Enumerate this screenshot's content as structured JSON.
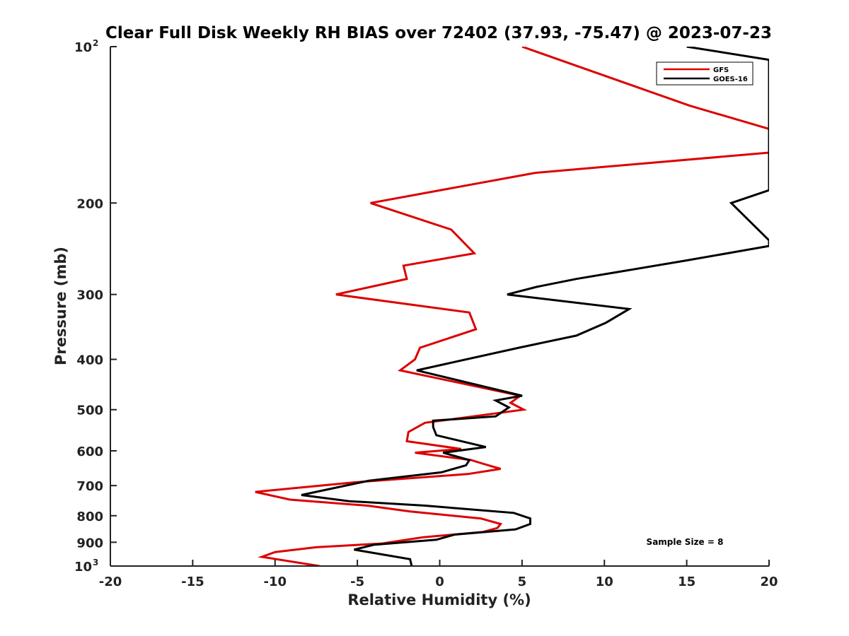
{
  "chart_data": {
    "type": "line",
    "title": "Clear Full Disk Weekly RH BIAS over 72402 (37.93, -75.47) @ 2023-07-23",
    "xlabel": "Relative Humidity (%)",
    "ylabel": "Pressure (mb)",
    "xlim": [
      -20,
      20
    ],
    "ylim": [
      100,
      1000
    ],
    "y_scale": "log",
    "y_reversed": true,
    "grid": false,
    "x_ticks": [
      "-20",
      "-15",
      "-10",
      "-5",
      "0",
      "5",
      "10",
      "15",
      "20"
    ],
    "y_ticks": [
      {
        "value": 100,
        "base": "10",
        "exp": "2"
      },
      {
        "value": 200,
        "label": "200"
      },
      {
        "value": 300,
        "label": "300"
      },
      {
        "value": 400,
        "label": "400"
      },
      {
        "value": 500,
        "label": "500"
      },
      {
        "value": 600,
        "label": "600"
      },
      {
        "value": 700,
        "label": "700"
      },
      {
        "value": 800,
        "label": "800"
      },
      {
        "value": 900,
        "label": "900"
      },
      {
        "value": 1000,
        "base": "10",
        "exp": "3"
      }
    ],
    "legend_position": "top-right",
    "annotation": "Sample Size = 8",
    "series": [
      {
        "name": "GFS",
        "color": "#dd0000",
        "points": [
          [
            5,
            100
          ],
          [
            15.2,
            130
          ],
          [
            20,
            144
          ],
          [
            20,
            160
          ],
          [
            5.8,
            175
          ],
          [
            -4.2,
            200
          ],
          [
            0.7,
            225
          ],
          [
            2.1,
            250
          ],
          [
            -2.2,
            264
          ],
          [
            -2.0,
            280
          ],
          [
            -6.3,
            300
          ],
          [
            1.8,
            325
          ],
          [
            2.2,
            350
          ],
          [
            -1.2,
            380
          ],
          [
            -1.5,
            400
          ],
          [
            -2.4,
            420
          ],
          [
            4.9,
            470
          ],
          [
            4.3,
            485
          ],
          [
            5.1,
            500
          ],
          [
            -0.9,
            530
          ],
          [
            -1.9,
            552
          ],
          [
            -2.0,
            575
          ],
          [
            1.3,
            595
          ],
          [
            -1.5,
            605
          ],
          [
            1.9,
            625
          ],
          [
            2.6,
            635
          ],
          [
            3.7,
            650
          ],
          [
            1.7,
            665
          ],
          [
            -5.2,
            690
          ],
          [
            -11.2,
            720
          ],
          [
            -9.1,
            745
          ],
          [
            -4.4,
            765
          ],
          [
            -1.8,
            785
          ],
          [
            2.5,
            810
          ],
          [
            3.7,
            830
          ],
          [
            3.5,
            845
          ],
          [
            2.6,
            860
          ],
          [
            -1.0,
            880
          ],
          [
            -3.5,
            905
          ],
          [
            -7.5,
            920
          ],
          [
            -10.0,
            940
          ],
          [
            -10.8,
            960
          ],
          [
            -7.3,
            1000
          ]
        ]
      },
      {
        "name": "GOES-16",
        "color": "#000000",
        "points": [
          [
            15,
            100
          ],
          [
            20,
            106
          ],
          [
            20,
            189
          ],
          [
            17.7,
            200
          ],
          [
            20,
            236
          ],
          [
            20,
            242
          ],
          [
            15,
            258
          ],
          [
            8.3,
            280
          ],
          [
            5.9,
            290
          ],
          [
            4.1,
            300
          ],
          [
            11.5,
            320
          ],
          [
            10.1,
            340
          ],
          [
            8.3,
            360
          ],
          [
            4.8,
            380
          ],
          [
            -1.4,
            420
          ],
          [
            5.0,
            470
          ],
          [
            3.4,
            480
          ],
          [
            4.2,
            495
          ],
          [
            3.4,
            515
          ],
          [
            -0.4,
            525
          ],
          [
            -0.4,
            540
          ],
          [
            -0.2,
            560
          ],
          [
            2.8,
            590
          ],
          [
            0.2,
            605
          ],
          [
            1.8,
            625
          ],
          [
            1.6,
            640
          ],
          [
            0.1,
            660
          ],
          [
            -4.3,
            685
          ],
          [
            -8.4,
            730
          ],
          [
            -5.5,
            750
          ],
          [
            -0.9,
            765
          ],
          [
            4.5,
            790
          ],
          [
            5.5,
            810
          ],
          [
            5.5,
            830
          ],
          [
            4.6,
            850
          ],
          [
            0.9,
            870
          ],
          [
            -0.2,
            890
          ],
          [
            -4.0,
            910
          ],
          [
            -5.2,
            930
          ],
          [
            -1.8,
            970
          ],
          [
            -1.7,
            1000
          ]
        ]
      }
    ]
  }
}
